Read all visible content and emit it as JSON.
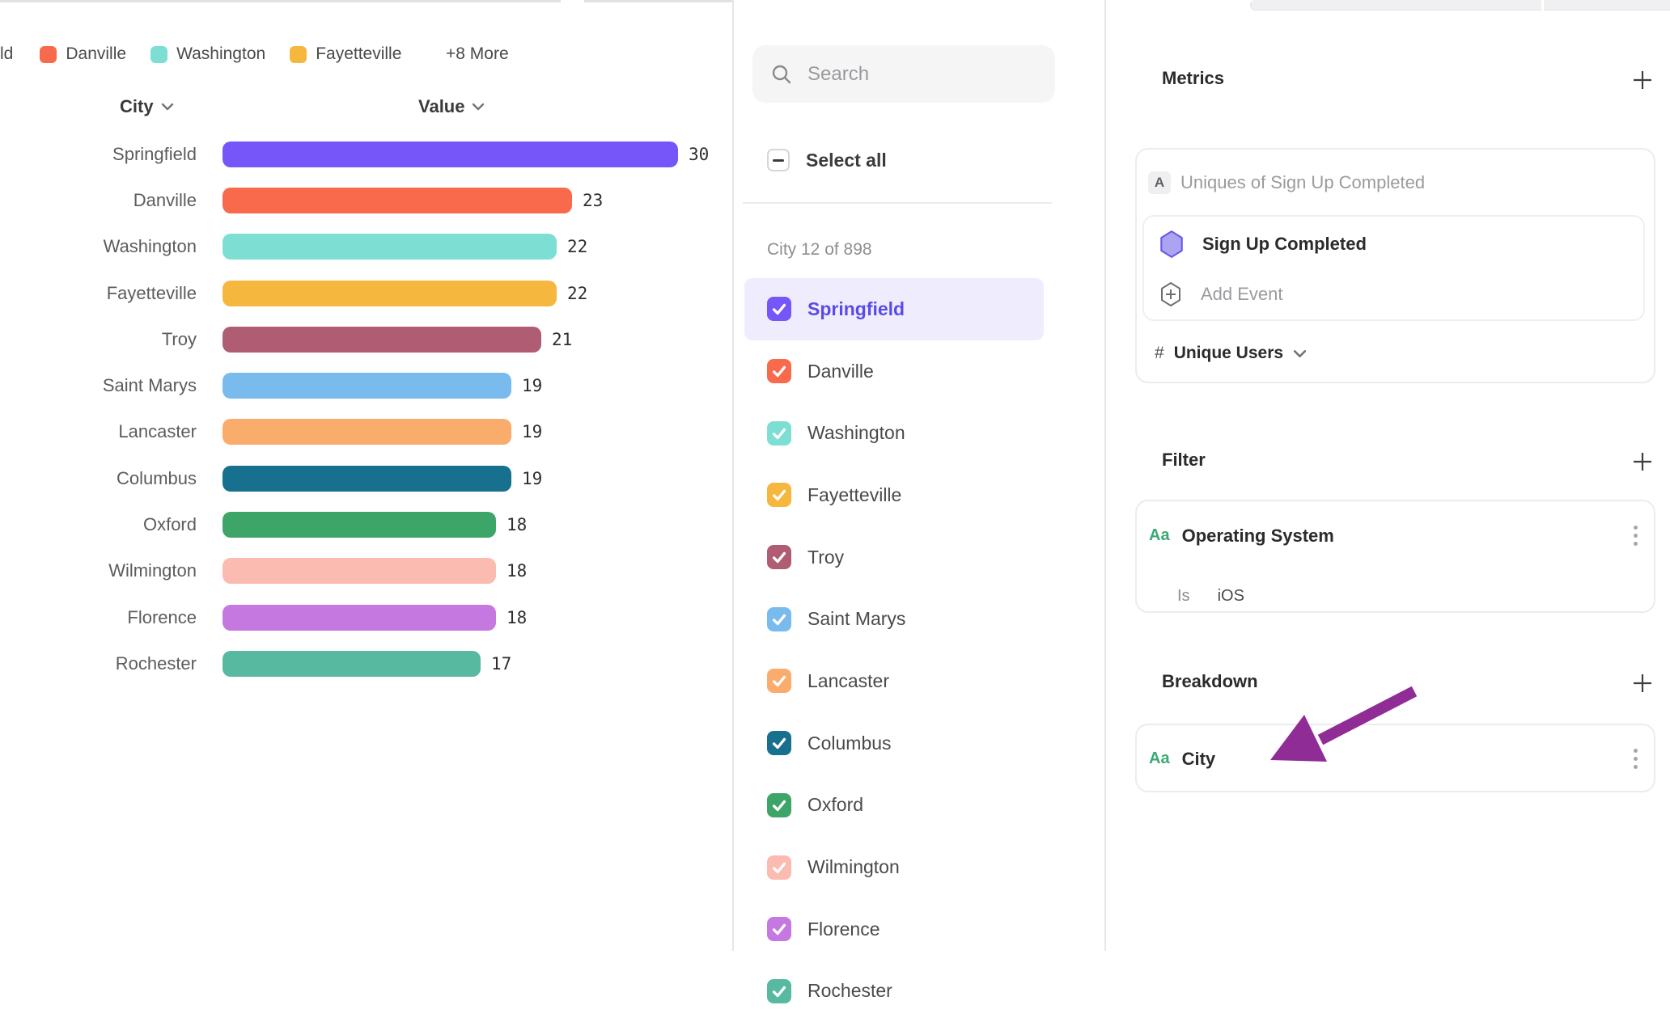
{
  "legend": {
    "clipped_item_text": "ld",
    "items": [
      {
        "label": "Danville",
        "color": "#F96A4C"
      },
      {
        "label": "Washington",
        "color": "#7DDFD3"
      },
      {
        "label": "Fayetteville",
        "color": "#F5B73E"
      }
    ],
    "more_label": "+8 More"
  },
  "chart_data": {
    "type": "bar",
    "orientation": "horizontal",
    "column_headers": {
      "category": "City",
      "value": "Value"
    },
    "categories": [
      "Springfield",
      "Danville",
      "Washington",
      "Fayetteville",
      "Troy",
      "Saint Marys",
      "Lancaster",
      "Columbus",
      "Oxford",
      "Wilmington",
      "Florence",
      "Rochester"
    ],
    "values": [
      30,
      23,
      22,
      22,
      21,
      19,
      19,
      19,
      18,
      18,
      18,
      17
    ],
    "colors": [
      "#7656F8",
      "#F96A4C",
      "#7DDFD3",
      "#F5B73E",
      "#B05C72",
      "#7ABBEE",
      "#FAAC6C",
      "#17708E",
      "#3EA569",
      "#FBBBB0",
      "#C579E0",
      "#57B9A0"
    ],
    "xlim": [
      0,
      30
    ],
    "grid": false,
    "value_labels": true
  },
  "city_selector": {
    "search": {
      "placeholder": "Search"
    },
    "select_all": {
      "label": "Select all",
      "state": "indeterminate"
    },
    "count_label": "City 12 of 898",
    "items": [
      {
        "label": "Springfield",
        "color": "#7656F8",
        "checked": true,
        "highlighted": true
      },
      {
        "label": "Danville",
        "color": "#F96A4C",
        "checked": true
      },
      {
        "label": "Washington",
        "color": "#7DDFD3",
        "checked": true
      },
      {
        "label": "Fayetteville",
        "color": "#F5B73E",
        "checked": true
      },
      {
        "label": "Troy",
        "color": "#B05C72",
        "checked": true
      },
      {
        "label": "Saint Marys",
        "color": "#7ABBEE",
        "checked": true
      },
      {
        "label": "Lancaster",
        "color": "#FAAC6C",
        "checked": true
      },
      {
        "label": "Columbus",
        "color": "#17708E",
        "checked": true
      },
      {
        "label": "Oxford",
        "color": "#3EA569",
        "checked": true
      },
      {
        "label": "Wilmington",
        "color": "#FBBBB0",
        "checked": true
      },
      {
        "label": "Florence",
        "color": "#C579E0",
        "checked": true
      },
      {
        "label": "Rochester",
        "color": "#57B9A0",
        "checked": true
      }
    ]
  },
  "inspector": {
    "metrics": {
      "title": "Metrics",
      "formula_badge": "A",
      "formula_text": "Uniques of Sign Up Completed",
      "event_name": "Sign Up Completed",
      "add_event_label": "Add Event",
      "aggregation_symbol": "#",
      "aggregation_label": "Unique Users"
    },
    "filter": {
      "title": "Filter",
      "type_badge": "Aa",
      "property": "Operating System",
      "operator": "Is",
      "value": "iOS"
    },
    "breakdown": {
      "title": "Breakdown",
      "type_badge": "Aa",
      "property": "City"
    }
  },
  "ui_colors": {
    "accent_purple": "#7656F8",
    "selected_row_bg": "#EFECFE",
    "selected_text": "#5A4BE7",
    "annotation_arrow": "#8F2C96",
    "type_badge_green": "#3BA974"
  }
}
